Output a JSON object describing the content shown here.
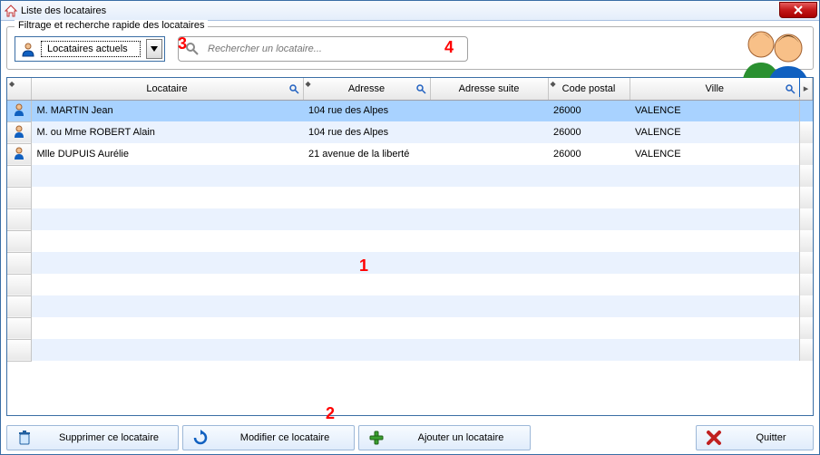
{
  "colors": {
    "annotation": "#ff0000",
    "window_border": "#3a6ea5",
    "titlebar_gradient_top": "#f6f9fd",
    "titlebar_gradient_bottom": "#e4eefb",
    "close_red_top": "#e65c5c",
    "close_red_bottom": "#a80000",
    "row_even": "#eaf2fe",
    "row_odd": "#ffffff",
    "row_selected": "#a8d2ff",
    "header_grad_top": "#fefefe",
    "header_grad_bottom": "#e8e8e8",
    "button_border": "#9db8d8",
    "button_grad_top": "#f7fbff",
    "button_grad_bottom": "#e0ecfb"
  },
  "titlebar": {
    "title": "Liste des locataires"
  },
  "filter": {
    "legend": "Filtrage et recherche rapide des locataires",
    "dropdown_selected": "Locataires actuels",
    "search_placeholder": "Rechercher un locataire..."
  },
  "annotations": {
    "n1": "1",
    "n2": "2",
    "n3": "3",
    "n4": "4"
  },
  "table": {
    "columns": {
      "locataire": "Locataire",
      "adresse": "Adresse",
      "adresse_suite": "Adresse suite",
      "code_postal": "Code postal",
      "ville": "Ville"
    },
    "rows": [
      {
        "locataire": "M. MARTIN Jean",
        "adresse": "104 rue des Alpes",
        "adresse_suite": "",
        "code_postal": "26000",
        "ville": "VALENCE"
      },
      {
        "locataire": "M. ou Mme ROBERT Alain",
        "adresse": "104 rue des Alpes",
        "adresse_suite": "",
        "code_postal": "26000",
        "ville": "VALENCE"
      },
      {
        "locataire": "Mlle DUPUIS Aurélie",
        "adresse": "21 avenue de la liberté",
        "adresse_suite": "",
        "code_postal": "26000",
        "ville": "VALENCE"
      }
    ],
    "empty_rows": 9,
    "selected_index": 0
  },
  "toolbar": {
    "delete": "Supprimer ce locataire",
    "edit": "Modifier ce locataire",
    "add": "Ajouter un locataire",
    "quit": "Quitter"
  }
}
